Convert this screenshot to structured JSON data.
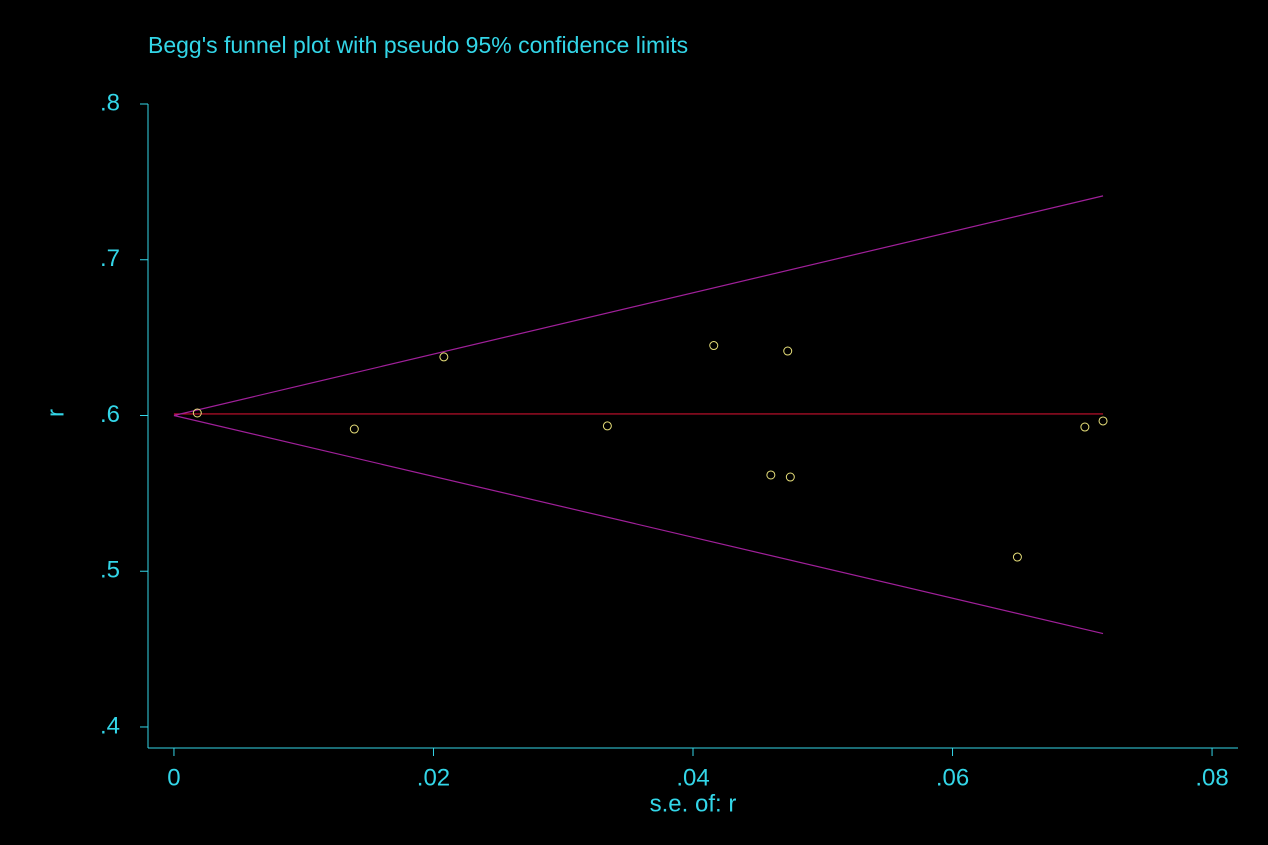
{
  "chart_data": {
    "type": "scatter",
    "title": "Begg's funnel plot with pseudo 95% confidence limits",
    "x_label": "s.e. of: r",
    "y_label": "r",
    "xlim": [
      -0.002,
      0.082
    ],
    "ylim": [
      0.3865,
      0.8
    ],
    "xticks": [
      0,
      {
        "value": 0.02,
        "label": ".02"
      },
      {
        "value": 0.04,
        "label": ".04"
      },
      {
        "value": 0.06,
        "label": ".06"
      },
      {
        "value": 0.08,
        "label": ".08"
      }
    ],
    "yticks": [
      {
        "value": 0.4,
        "label": ".4"
      },
      {
        "value": 0.5,
        "label": ".5"
      },
      {
        "value": 0.6,
        "label": ".6"
      },
      {
        "value": 0.7,
        "label": ".7"
      },
      {
        "value": 0.8,
        "label": ".8"
      }
    ],
    "axis_color": "#33d6e8",
    "series": [
      {
        "mode": "markers",
        "color": "#e8e07a",
        "x": [
          0.0018,
          0.0139,
          0.0208,
          0.0334,
          0.0416,
          0.0473,
          0.046,
          0.0475,
          0.065,
          0.0702,
          0.0716
        ],
        "values": [
          0.6016,
          0.5913,
          0.6376,
          0.5933,
          0.6449,
          0.6414,
          0.5618,
          0.5605,
          0.5091,
          0.5926,
          0.5965
        ]
      },
      {
        "mode": "line",
        "color": "#c8102e",
        "x": [
          0,
          0.0716
        ],
        "values": [
          0.601,
          0.601
        ]
      },
      {
        "mode": "line",
        "color": "#a0209a",
        "x": [
          0,
          0.0716
        ],
        "values": [
          0.6,
          0.741
        ]
      },
      {
        "mode": "line",
        "color": "#a0209a",
        "x": [
          0,
          0.0716
        ],
        "values": [
          0.6,
          0.46
        ]
      }
    ]
  }
}
